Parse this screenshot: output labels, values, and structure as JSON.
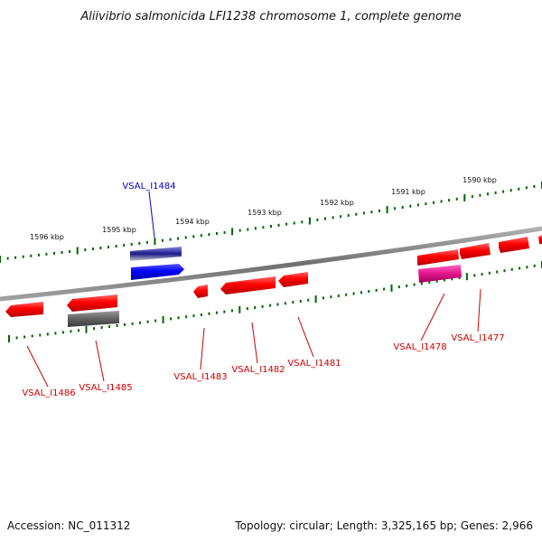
{
  "title": "Aliivibrio salmonicida LFI1238 chromosome 1, complete genome",
  "footer": {
    "accession": "Accession: NC_011312",
    "topology": "Topology: circular; Length: 3,325,165 bp; Genes: 2,966"
  },
  "colors": {
    "gene_red": "#ff0000",
    "gene_blue": "#0000ff",
    "gene_magenta": "#e8198f",
    "gene_gray": "#666666",
    "highlight_label": "#0000cc",
    "label_red": "#cc0000",
    "tick_green": "#006400",
    "backbone": "#808080"
  },
  "ruler": {
    "labels": [
      "1596 kbp",
      "1595 kbp",
      "1594 kbp",
      "1593 kbp",
      "1592 kbp",
      "1591 kbp",
      "1590 kbp"
    ]
  },
  "gene_labels": [
    {
      "id": "VSAL_I1484",
      "highlighted": true
    },
    {
      "id": "VSAL_I1486",
      "highlighted": false
    },
    {
      "id": "VSAL_I1485",
      "highlighted": false
    },
    {
      "id": "VSAL_I1483",
      "highlighted": false
    },
    {
      "id": "VSAL_I1482",
      "highlighted": false
    },
    {
      "id": "VSAL_I1481",
      "highlighted": false
    },
    {
      "id": "VSAL_I1478",
      "highlighted": false
    },
    {
      "id": "VSAL_I1477",
      "highlighted": false
    }
  ]
}
